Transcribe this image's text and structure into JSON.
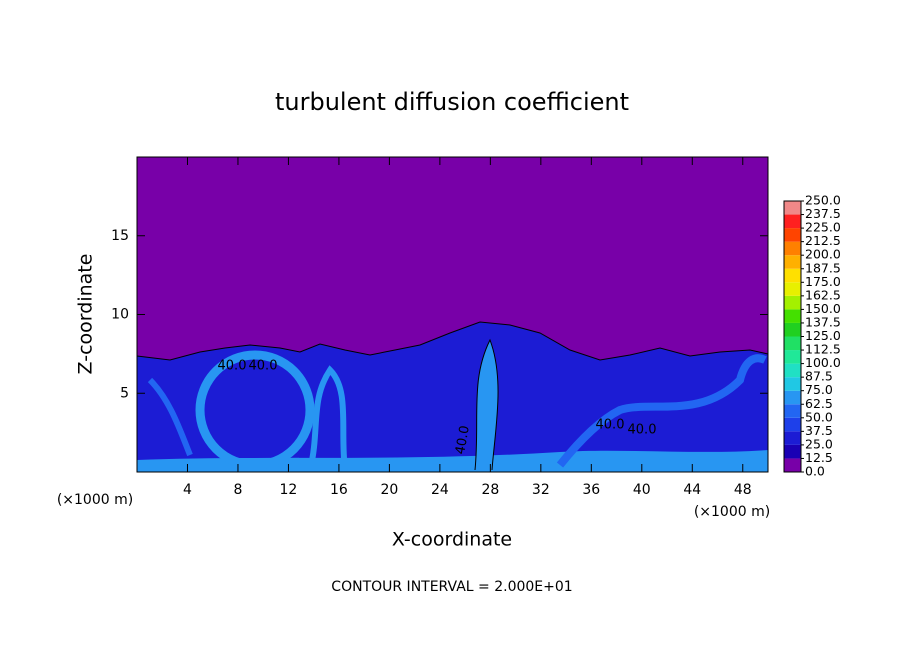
{
  "chart_data": {
    "type": "contour",
    "title": "turbulent diffusion coefficient",
    "x_label": "X-coordinate",
    "y_label": "Z-coordinate",
    "y_unit": "(×1000 m)",
    "x_unit": "(×1000 m)",
    "footnote": "CONTOUR INTERVAL = 2.000E+01",
    "xlim": [
      0,
      50
    ],
    "xticks": [
      4,
      8,
      12,
      16,
      20,
      24,
      28,
      32,
      36,
      40,
      44,
      48
    ],
    "ylim": [
      0,
      20
    ],
    "yticks": [
      5,
      10,
      15
    ],
    "contour_labels": [
      "40.0",
      "40.0",
      "40.0",
      "40.0",
      "40.0"
    ],
    "colorbar": {
      "ticks": [
        {
          "value": 0,
          "label": "0.0"
        },
        12.5,
        {
          "value": 25,
          "label": "25.0"
        },
        37.5,
        {
          "value": 50,
          "label": "50.0"
        },
        62.5,
        {
          "value": 75,
          "label": "75.0"
        },
        87.5,
        {
          "value": 100,
          "label": "100.0"
        },
        112.5,
        {
          "value": 125,
          "label": "125.0"
        },
        137.5,
        {
          "value": 150,
          "label": "150.0"
        },
        162.5,
        {
          "value": 175,
          "label": "175.0"
        },
        187.5,
        {
          "value": 200,
          "label": "200.0"
        },
        212.5,
        {
          "value": 225,
          "label": "225.0"
        },
        237.5,
        {
          "value": 250,
          "label": "250.0"
        }
      ],
      "colors": [
        "#7800a8",
        "#1a00b4",
        "#1c1cd4",
        "#1e40ea",
        "#2266f2",
        "#2896f2",
        "#20c8e4",
        "#20e0c4",
        "#20e898",
        "#20e064",
        "#20d020",
        "#44e000",
        "#a4f000",
        "#e8f000",
        "#ffe000",
        "#ffb000",
        "#ff8000",
        "#ff4400",
        "#ff2020",
        "#f08888"
      ]
    }
  }
}
